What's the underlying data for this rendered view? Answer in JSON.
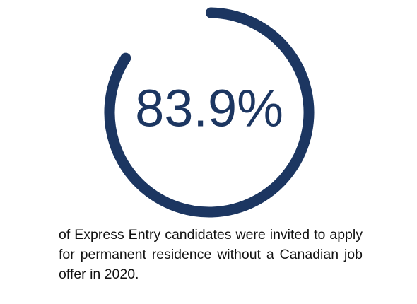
{
  "chart_data": {
    "type": "pie",
    "value_percent": 83.9,
    "value_label": "83.9%",
    "colors": {
      "arc": "#1c3661",
      "value_text": "#1c3661"
    }
  },
  "caption": "of Express Entry candidates were invited to apply for permanent residence without a Canadian job offer in 2020."
}
